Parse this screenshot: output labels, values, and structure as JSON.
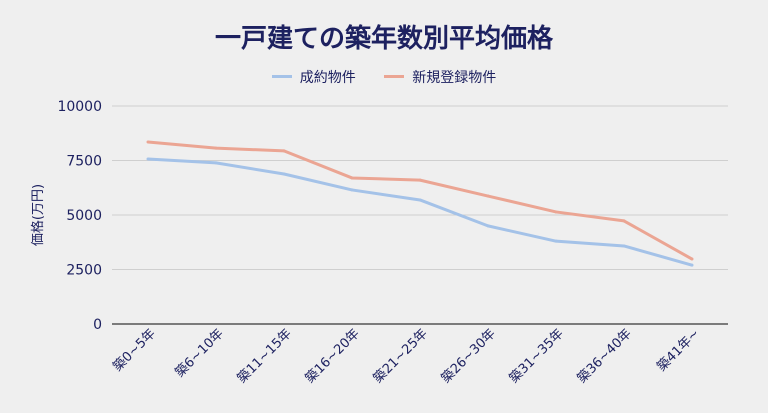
{
  "chart_data": {
    "type": "line",
    "title": "一戸建ての築年数別平均価格",
    "xlabel": "",
    "ylabel": "価格(万円)",
    "categories": [
      "築0~5年",
      "築6~10年",
      "築11~15年",
      "築16~20年",
      "築21~25年",
      "築26~30年",
      "築31~35年",
      "築36~40年",
      "築41年~"
    ],
    "ylim": [
      0,
      10000
    ],
    "yticks": [
      0,
      2500,
      5000,
      7500,
      10000
    ],
    "grid": true,
    "legend": "top",
    "series": [
      {
        "name": "成約物件",
        "color": "#a4c2e8",
        "values": [
          7570,
          7390,
          6880,
          6150,
          5690,
          4500,
          3800,
          3580,
          2700
        ]
      },
      {
        "name": "新規登録物件",
        "color": "#eba593",
        "values": [
          8350,
          8070,
          7940,
          6700,
          6600,
          5870,
          5140,
          4730,
          2980
        ]
      }
    ]
  }
}
